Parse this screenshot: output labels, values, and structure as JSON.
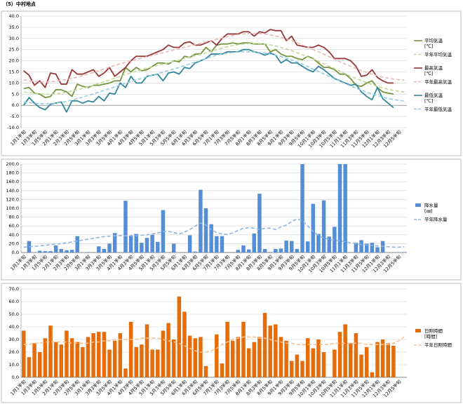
{
  "title": "（5）中村地点",
  "chart_data": [
    {
      "type": "line",
      "categories": [
        "1月1半旬",
        null,
        "1月3半旬",
        null,
        "1月5半旬",
        null,
        "2月1半旬",
        null,
        "2月3半旬",
        null,
        "2月5半旬",
        null,
        "3月1半旬",
        null,
        "3月3半旬",
        null,
        "3月5半旬",
        null,
        "4月1半旬",
        null,
        "4月3半旬",
        null,
        "4月5半旬",
        null,
        "5月1半旬",
        null,
        "5月3半旬",
        null,
        "5月5半旬",
        null,
        "6月1半旬",
        null,
        "6月3半旬",
        null,
        "6月5半旬",
        null,
        "7月1半旬",
        null,
        "7月3半旬",
        null,
        "7月5半旬",
        null,
        "8月1半旬",
        null,
        "8月3半旬",
        null,
        "8月5半旬",
        null,
        "9月1半旬",
        null,
        "9月3半旬",
        null,
        "9月5半旬",
        null,
        "10月1半旬",
        null,
        "10月3半旬",
        null,
        "10月5半旬",
        null,
        "11月1半旬",
        null,
        "11月3半旬",
        null,
        "11月5半旬",
        null,
        "12月1半旬",
        null,
        "12月3半旬",
        null,
        "12月5半旬",
        null
      ],
      "ylim": [
        -10,
        40
      ],
      "yticks": [
        {
          "value": -10,
          "label": "-10.0"
        },
        {
          "value": -5,
          "label": "-5.0"
        },
        {
          "value": 0,
          "label": "0.0"
        },
        {
          "value": 5,
          "label": "5.0"
        },
        {
          "value": 10,
          "label": "10.0"
        },
        {
          "value": 15,
          "label": "15.0"
        },
        {
          "value": 20,
          "label": "20.0"
        },
        {
          "value": 25,
          "label": "25.0"
        },
        {
          "value": 30,
          "label": "30.0"
        },
        {
          "value": 35,
          "label": "35.0"
        },
        {
          "value": 40,
          "label": "40.0"
        }
      ],
      "grid": true,
      "series": [
        {
          "name": "平均気温\n[℃]",
          "type": "line",
          "color": "#77933c",
          "dashed": false,
          "values": [
            7.5,
            8,
            5.5,
            5,
            3.5,
            4,
            7,
            7,
            6,
            4,
            9.5,
            8.5,
            8,
            9,
            9,
            9.5,
            10,
            11,
            11,
            17,
            15,
            17,
            15.5,
            16,
            17.5,
            19,
            19,
            18.5,
            20,
            19.5,
            22,
            21.5,
            23,
            23,
            26,
            24,
            27,
            27.5,
            27.5,
            28,
            27.5,
            28,
            28,
            27.5,
            27.5,
            27.5,
            24,
            25,
            23,
            22,
            22,
            21,
            20.5,
            22,
            21,
            19,
            17,
            17,
            16,
            14,
            14,
            12,
            9,
            8.5,
            10,
            11,
            8,
            6,
            5.5,
            5,
            null,
            null
          ]
        },
        {
          "name": "平年平均気温",
          "type": "line",
          "color": "#c3d69b",
          "dashed": true,
          "values": [
            6,
            5.7,
            5.4,
            5.2,
            5,
            5,
            5.2,
            5.5,
            5.9,
            6.4,
            7,
            7.6,
            8.3,
            9,
            9.8,
            10.6,
            11.4,
            12.2,
            13,
            13.8,
            14.6,
            15.3,
            16,
            16.7,
            17.3,
            17.9,
            18.5,
            19.1,
            19.7,
            20.3,
            21,
            21.7,
            22.3,
            22.9,
            23.5,
            24.2,
            25,
            25.7,
            26.3,
            26.8,
            27.2,
            27.5,
            27.7,
            27.8,
            27.7,
            27.5,
            27.1,
            26.6,
            26,
            25.3,
            24.5,
            23.6,
            22.7,
            21.7,
            20.7,
            19.7,
            18.6,
            17.5,
            16.4,
            15.3,
            14.2,
            13.1,
            12.1,
            11.1,
            10.2,
            9.3,
            8.5,
            7.8,
            7.2,
            6.7,
            6.3,
            6
          ]
        },
        {
          "name": "最高気温\n[℃]",
          "type": "line",
          "color": "#953735",
          "dashed": false,
          "values": [
            15.5,
            13.5,
            9,
            11,
            8,
            14.5,
            14,
            9.5,
            9.5,
            16,
            14,
            14,
            15,
            16,
            13,
            14.5,
            17,
            13,
            15,
            17,
            20,
            22,
            22,
            22,
            23,
            24,
            25,
            27,
            26,
            26,
            28,
            28.5,
            27,
            27,
            28,
            29,
            27,
            30,
            32,
            32,
            32,
            33,
            33,
            31,
            33,
            32.5,
            34,
            33.5,
            33.5,
            29,
            31,
            27,
            26.5,
            26,
            26,
            27,
            26,
            24,
            21,
            21,
            21,
            20,
            17.5,
            13,
            13.5,
            16,
            12.5,
            11,
            10,
            10,
            null,
            null
          ]
        },
        {
          "name": "平年最高気温",
          "type": "line",
          "color": "#e6b9b8",
          "dashed": true,
          "values": [
            11.5,
            11,
            10.8,
            10.6,
            10.5,
            10.6,
            10.8,
            11.2,
            11.6,
            12.1,
            12.7,
            13.3,
            14,
            14.7,
            15.5,
            16.3,
            17.1,
            17.9,
            18.6,
            19.3,
            20,
            20.6,
            21.2,
            21.8,
            22.4,
            23,
            23.6,
            24.2,
            24.8,
            25.4,
            26,
            26.6,
            27.2,
            27.8,
            28.4,
            29,
            29.6,
            30.2,
            30.8,
            31.3,
            31.7,
            32,
            32.2,
            32.3,
            32.2,
            32,
            31.6,
            31.1,
            30.5,
            29.8,
            29,
            28.1,
            27.1,
            26.1,
            25,
            24,
            22.9,
            21.8,
            20.7,
            19.6,
            18.5,
            17.5,
            16.5,
            15.6,
            14.8,
            14,
            13.3,
            12.7,
            12.2,
            11.8,
            11.5,
            11.3
          ]
        },
        {
          "name": "最低気温\n[℃]",
          "type": "line",
          "color": "#31859c",
          "dashed": false,
          "values": [
            0,
            3.5,
            1,
            -1,
            -2,
            0.5,
            1,
            1.5,
            -3,
            2,
            2,
            1,
            2,
            1.5,
            4,
            2,
            5.5,
            5,
            10,
            8,
            13,
            10,
            10,
            13,
            13.5,
            14,
            11,
            14.5,
            15,
            14,
            17,
            16.5,
            19,
            20,
            21,
            23,
            23,
            23,
            24,
            24,
            24,
            25,
            25,
            24,
            23.5,
            22.5,
            23.5,
            22.5,
            19,
            20.5,
            19,
            19,
            17.5,
            16,
            15,
            17.5,
            16,
            14,
            12,
            11,
            10,
            9,
            9.5,
            6,
            4,
            2.5,
            8,
            3,
            1,
            -1,
            null,
            null
          ]
        },
        {
          "name": "平年最低気温",
          "type": "line",
          "color": "#93cddd",
          "dashed": true,
          "values": [
            1.5,
            1.2,
            1,
            0.8,
            0.7,
            0.8,
            1,
            1.3,
            1.8,
            2.4,
            3,
            3.7,
            4.4,
            5.1,
            5.9,
            6.7,
            7.5,
            8.3,
            9.1,
            9.9,
            10.7,
            11.4,
            12.1,
            12.8,
            13.5,
            14.2,
            14.9,
            15.6,
            16.3,
            17,
            17.8,
            18.6,
            19.4,
            20.2,
            21,
            21.8,
            22.5,
            23,
            23.4,
            23.7,
            23.9,
            24,
            24,
            23.9,
            23.7,
            23.4,
            23,
            22.5,
            21.9,
            21.2,
            20.4,
            19.5,
            18.5,
            17.4,
            16.3,
            15.2,
            14.1,
            13,
            11.9,
            10.8,
            9.7,
            8.7,
            7.7,
            6.8,
            5.9,
            5.1,
            4.4,
            3.7,
            3.1,
            2.6,
            2.2,
            1.9
          ]
        }
      ]
    },
    {
      "type": "bar",
      "categories": [
        "1月1半旬",
        null,
        "1月3半旬",
        null,
        "1月5半旬",
        null,
        "2月1半旬",
        null,
        "2月3半旬",
        null,
        "2月5半旬",
        null,
        "3月1半旬",
        null,
        "3月3半旬",
        null,
        "3月5半旬",
        null,
        "4月1半旬",
        null,
        "4月3半旬",
        null,
        "4月5半旬",
        null,
        "5月1半旬",
        null,
        "5月3半旬",
        null,
        "5月5半旬",
        null,
        "6月1半旬",
        null,
        "6月3半旬",
        null,
        "6月5半旬",
        null,
        "7月1半旬",
        null,
        "7月3半旬",
        null,
        "7月5半旬",
        null,
        "8月1半旬",
        null,
        "8月3半旬",
        null,
        "8月5半旬",
        null,
        "9月1半旬",
        null,
        "9月3半旬",
        null,
        "9月5半旬",
        null,
        "10月1半旬",
        null,
        "10月3半旬",
        null,
        "10月5半旬",
        null,
        "11月1半旬",
        null,
        "11月3半旬",
        null,
        "11月5半旬",
        null,
        "12月1半旬",
        null,
        "12月3半旬",
        null,
        "12月5半旬",
        null
      ],
      "ylim": [
        0,
        200
      ],
      "yticks": [
        {
          "value": 0,
          "label": "0.0"
        },
        {
          "value": 20,
          "label": "20.0"
        },
        {
          "value": 40,
          "label": "40.0"
        },
        {
          "value": 60,
          "label": "60.0"
        },
        {
          "value": 80,
          "label": "80.0"
        },
        {
          "value": 100,
          "label": "100.0"
        },
        {
          "value": 120,
          "label": "120.0"
        },
        {
          "value": 140,
          "label": "140.0"
        },
        {
          "value": 160,
          "label": "160.0"
        },
        {
          "value": 180,
          "label": "180.0"
        },
        {
          "value": 200,
          "label": "200.0"
        }
      ],
      "grid": true,
      "series": [
        {
          "name": "降水量\n[㎜]",
          "type": "bar",
          "color": "#558ed5",
          "dashed": false,
          "values": [
            0,
            26,
            0,
            4,
            3,
            3,
            16,
            8,
            5,
            6,
            37,
            0,
            1,
            0,
            14,
            8,
            20,
            44,
            0,
            117,
            38,
            42,
            22,
            33,
            40,
            24,
            96,
            0,
            20,
            0,
            0,
            39,
            2,
            142,
            100,
            64,
            37,
            37,
            0,
            0,
            6,
            16,
            7,
            43,
            133,
            8,
            1,
            8,
            9,
            27,
            26,
            8,
            200,
            25,
            110,
            42,
            118,
            36,
            58,
            200,
            200,
            0,
            22,
            28,
            20,
            22,
            12,
            26,
            0,
            0,
            0,
            1
          ]
        },
        {
          "name": "平年降水量",
          "type": "line",
          "color": "#8eb4e3",
          "dashed": true,
          "values": [
            12,
            13,
            14,
            15,
            16,
            18,
            19,
            20,
            22,
            24,
            26,
            28,
            30,
            32,
            34,
            36,
            37,
            38,
            38,
            38,
            38,
            38,
            39,
            40,
            42,
            44,
            47,
            48,
            45,
            42,
            46,
            52,
            60,
            67,
            62,
            52,
            45,
            42,
            41,
            44,
            50,
            55,
            56,
            55,
            52,
            55,
            55,
            52,
            58,
            62,
            70,
            76,
            72,
            60,
            48,
            38,
            33,
            30,
            28,
            26,
            24,
            22,
            20,
            18,
            17,
            16,
            15,
            14,
            13,
            12,
            12,
            13
          ]
        }
      ]
    },
    {
      "type": "bar",
      "categories": [
        "1月1半旬",
        null,
        "1月3半旬",
        null,
        "1月5半旬",
        null,
        "2月1半旬",
        null,
        "2月3半旬",
        null,
        "2月5半旬",
        null,
        "3月1半旬",
        null,
        "3月3半旬",
        null,
        "3月5半旬",
        null,
        "4月1半旬",
        null,
        "4月3半旬",
        null,
        "4月5半旬",
        null,
        "5月1半旬",
        null,
        "5月3半旬",
        null,
        "5月5半旬",
        null,
        "6月1半旬",
        null,
        "6月3半旬",
        null,
        "6月5半旬",
        null,
        "7月1半旬",
        null,
        "7月3半旬",
        null,
        "7月5半旬",
        null,
        "8月1半旬",
        null,
        "8月3半旬",
        null,
        "8月5半旬",
        null,
        "9月1半旬",
        null,
        "9月3半旬",
        null,
        "9月5半旬",
        null,
        "10月1半旬",
        null,
        "10月3半旬",
        null,
        "10月5半旬",
        null,
        "11月1半旬",
        null,
        "11月3半旬",
        null,
        "11月5半旬",
        null,
        "12月1半旬",
        null,
        "12月3半旬",
        null,
        "12月5半旬",
        null
      ],
      "ylim": [
        0,
        70
      ],
      "yticks": [
        {
          "value": 0,
          "label": "0.0"
        },
        {
          "value": 10,
          "label": "10.0"
        },
        {
          "value": 20,
          "label": "20.0"
        },
        {
          "value": 30,
          "label": "30.0"
        },
        {
          "value": 40,
          "label": "40.0"
        },
        {
          "value": 50,
          "label": "50.0"
        },
        {
          "value": 60,
          "label": "60.0"
        },
        {
          "value": 70,
          "label": "70.0"
        }
      ],
      "grid": true,
      "series": [
        {
          "name": "日照時間\n[時間]",
          "type": "bar",
          "color": "#e46c0a",
          "dashed": false,
          "values": [
            37,
            16,
            27,
            20,
            31,
            41,
            28,
            26,
            37,
            31,
            28,
            24,
            32,
            35,
            36,
            36,
            22,
            29,
            35,
            7,
            44,
            24,
            26,
            42,
            22,
            22,
            37,
            43,
            30,
            64,
            52,
            33,
            31,
            32,
            9,
            0,
            34,
            11,
            44,
            29,
            32,
            44,
            23,
            28,
            32,
            51,
            41,
            42,
            32,
            29,
            13,
            18,
            13,
            31,
            23,
            30,
            20,
            0,
            22,
            36,
            42,
            27,
            35,
            18,
            24,
            4,
            28,
            30,
            27,
            25,
            0,
            0
          ]
        },
        {
          "name": "平年日照時間",
          "type": "line",
          "color": "#fac090",
          "dashed": true,
          "values": [
            26,
            26,
            27,
            27,
            28,
            28,
            28,
            28,
            28,
            27,
            27,
            27,
            27,
            28,
            28,
            29,
            29,
            30,
            30,
            30,
            30,
            30,
            31,
            31,
            31,
            31,
            30,
            29,
            28,
            27,
            25,
            23,
            21,
            20,
            20,
            21,
            23,
            26,
            28,
            30,
            31,
            32,
            32,
            32,
            31,
            31,
            30,
            29,
            28,
            27,
            27,
            26,
            26,
            26,
            26,
            26,
            26,
            26,
            27,
            27,
            27,
            27,
            27,
            27,
            26,
            26,
            26,
            26,
            26,
            27,
            29,
            32
          ]
        }
      ]
    }
  ]
}
